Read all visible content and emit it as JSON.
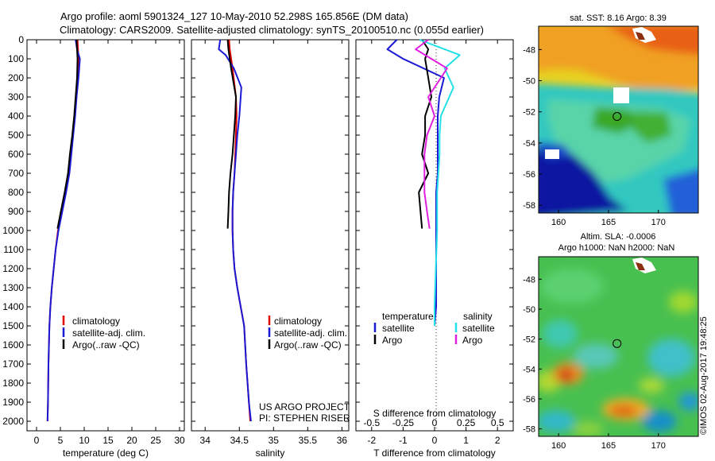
{
  "header": {
    "line1": "Argo profile: aoml 5901324_127 10-May-2010 52.298S 165.856E (DM data)",
    "line2": "Climatology: CARS2009. Satellite-adjusted climatology: synTS_20100510.nc (0.055d earlier)"
  },
  "colors": {
    "climatology": "#e00000",
    "satellite": "#1a1ad6",
    "argo": "#000000",
    "satellite_salinity": "#22e0e8",
    "argo_salinity": "#e020e0"
  },
  "credits": {
    "project": "US ARGO PROJECT",
    "pi": "PI: STEPHEN RISER",
    "watermark": "©IMOS 02-Aug-2017 19:48:25"
  },
  "chart_data": [
    {
      "type": "line",
      "xlabel": "temperature (deg C)",
      "ylabel": "",
      "xlim": [
        -2,
        31
      ],
      "ylim": [
        2050,
        0
      ],
      "xticks": [
        0,
        5,
        10,
        15,
        20,
        25,
        30
      ],
      "yticks": [
        0,
        100,
        200,
        300,
        400,
        500,
        600,
        700,
        800,
        900,
        1000,
        1100,
        1200,
        1300,
        1400,
        1500,
        1600,
        1700,
        1800,
        1900,
        2000
      ],
      "legend": [
        "climatology",
        "satellite-adj. clim.",
        "Argo(..raw -QC)"
      ],
      "legend_position": "center-left",
      "series": [
        {
          "name": "climatology",
          "color": "#e00000",
          "x": [
            8.6,
            8.7,
            8.8,
            8.6,
            8.3,
            8.0,
            7.6,
            7.2,
            6.8,
            6.1,
            5.3,
            4.5,
            4.0,
            3.6,
            3.2,
            2.9,
            2.7,
            2.5,
            2.4,
            2.3
          ],
          "y": [
            0,
            50,
            100,
            200,
            300,
            400,
            500,
            600,
            700,
            800,
            900,
            1000,
            1100,
            1200,
            1300,
            1400,
            1500,
            1700,
            1900,
            2000
          ]
        },
        {
          "name": "satellite-adj. clim.",
          "color": "#1a1ad6",
          "x": [
            8.2,
            8.5,
            9.1,
            8.8,
            8.4,
            8.1,
            7.7,
            7.3,
            6.9,
            6.2,
            5.4,
            4.6,
            4.0,
            3.6,
            3.2,
            2.9,
            2.7,
            2.5,
            2.4,
            2.3
          ],
          "y": [
            0,
            50,
            100,
            200,
            300,
            400,
            500,
            600,
            700,
            800,
            900,
            1000,
            1100,
            1200,
            1300,
            1400,
            1500,
            1700,
            1900,
            2000
          ]
        },
        {
          "name": "Argo(..raw -QC)",
          "color": "#000000",
          "x": [
            8.4,
            8.5,
            8.6,
            8.5,
            8.2,
            7.9,
            7.5,
            7.0,
            6.6,
            5.9,
            5.1,
            4.4
          ],
          "y": [
            0,
            50,
            100,
            200,
            300,
            400,
            500,
            600,
            700,
            800,
            900,
            990
          ]
        }
      ]
    },
    {
      "type": "line",
      "xlabel": "salinity",
      "ylabel": "",
      "xlim": [
        33.8,
        36.1
      ],
      "ylim": [
        2050,
        0
      ],
      "xticks": [
        34,
        34.5,
        35,
        35.5,
        36
      ],
      "legend": [
        "climatology",
        "satellite-adj. clim.",
        "Argo(..raw -QC)"
      ],
      "legend_position": "center-right",
      "series": [
        {
          "name": "climatology",
          "color": "#e00000",
          "x": [
            34.35,
            34.36,
            34.4,
            34.45,
            34.46,
            34.45,
            34.44,
            34.43,
            34.41,
            34.4,
            34.4,
            34.41,
            34.43,
            34.47,
            34.52,
            34.57,
            34.6,
            34.64,
            34.66
          ],
          "y": [
            0,
            50,
            150,
            300,
            400,
            500,
            600,
            700,
            800,
            900,
            1000,
            1100,
            1200,
            1300,
            1400,
            1500,
            1700,
            1900,
            2000
          ]
        },
        {
          "name": "satellite-adj. clim.",
          "color": "#1a1ad6",
          "x": [
            34.22,
            34.2,
            34.3,
            34.42,
            34.53,
            34.5,
            34.47,
            34.45,
            34.43,
            34.41,
            34.4,
            34.4,
            34.41,
            34.43,
            34.47,
            34.52,
            34.57,
            34.6,
            34.64,
            34.67
          ],
          "y": [
            0,
            50,
            80,
            150,
            250,
            400,
            500,
            600,
            700,
            800,
            900,
            1000,
            1100,
            1200,
            1300,
            1400,
            1500,
            1700,
            1900,
            2000
          ]
        },
        {
          "name": "Argo(..raw -QC)",
          "color": "#000000",
          "x": [
            34.33,
            34.34,
            34.38,
            34.45,
            34.44,
            34.42,
            34.4,
            34.37,
            34.35,
            34.34,
            34.33
          ],
          "y": [
            0,
            50,
            150,
            300,
            400,
            500,
            600,
            700,
            800,
            900,
            990
          ]
        }
      ]
    },
    {
      "type": "line",
      "xlabel": "T difference from climatology",
      "xlabel_top": "S difference from climatology",
      "xlim": [
        -2.5,
        2.5
      ],
      "ylim": [
        2050,
        0
      ],
      "xticks": [
        -2,
        -1,
        0,
        1,
        2
      ],
      "s_xticks": [
        -0.5,
        -0.25,
        0,
        0.25,
        0.5
      ],
      "legend_titles": [
        "temperature",
        "salinity"
      ],
      "legend": [
        "satellite",
        "Argo",
        "satellite",
        "Argo"
      ],
      "legend_position": "lower-center",
      "series": [
        {
          "name": "satellite",
          "group": "temperature",
          "color": "#1a1ad6",
          "x": [
            -1.2,
            -1.5,
            -1.0,
            0.3,
            0.15,
            0.1,
            0.1,
            0.1,
            0.1,
            0.05,
            0.05,
            0.05,
            0.05,
            0.0
          ],
          "y": [
            0,
            50,
            100,
            200,
            300,
            400,
            500,
            600,
            700,
            800,
            1000,
            1200,
            1400,
            1500
          ]
        },
        {
          "name": "Argo",
          "group": "temperature",
          "color": "#000000",
          "x": [
            -0.4,
            -0.2,
            -0.3,
            -0.2,
            -0.1,
            -0.3,
            -0.3,
            -0.4,
            -0.2,
            -0.5,
            -0.4
          ],
          "y": [
            0,
            50,
            100,
            200,
            300,
            400,
            500,
            600,
            700,
            800,
            990
          ]
        },
        {
          "name": "satellite",
          "group": "salinity",
          "color": "#22e0e8",
          "x": [
            -0.12,
            0.2,
            0.08,
            0.15,
            0.05,
            0.04,
            0.04,
            0.03,
            0.02,
            0.02,
            0.01,
            0.0,
            0.0
          ],
          "y": [
            0,
            80,
            150,
            250,
            400,
            500,
            600,
            700,
            800,
            1000,
            1200,
            1400,
            1500
          ]
        },
        {
          "name": "Argo",
          "group": "salinity",
          "color": "#e020e0",
          "x": [
            -0.05,
            -0.15,
            0.1,
            -0.05,
            0.0,
            -0.06,
            -0.08,
            -0.08,
            -0.08,
            -0.06,
            -0.04
          ],
          "y": [
            0,
            50,
            150,
            300,
            400,
            500,
            600,
            700,
            800,
            900,
            990
          ]
        }
      ]
    },
    {
      "type": "heatmap",
      "title": "sat. SST: 8.16 Argo: 8.39",
      "xlim": [
        158,
        174
      ],
      "ylim": [
        -58.5,
        -46.5
      ],
      "xticks": [
        160,
        165,
        170
      ],
      "yticks": [
        -48,
        -50,
        -52,
        -54,
        -56,
        -58
      ],
      "marker": {
        "lon": 165.856,
        "lat": -52.298
      }
    },
    {
      "type": "heatmap",
      "title": "Altim. SLA: -0.0006",
      "subtitle": "Argo h1000: NaN h2000: NaN",
      "xlim": [
        158,
        174
      ],
      "ylim": [
        -58.5,
        -46.5
      ],
      "xticks": [
        160,
        165,
        170
      ],
      "yticks": [
        -48,
        -50,
        -52,
        -54,
        -56,
        -58
      ],
      "marker": {
        "lon": 165.856,
        "lat": -52.298
      }
    }
  ]
}
